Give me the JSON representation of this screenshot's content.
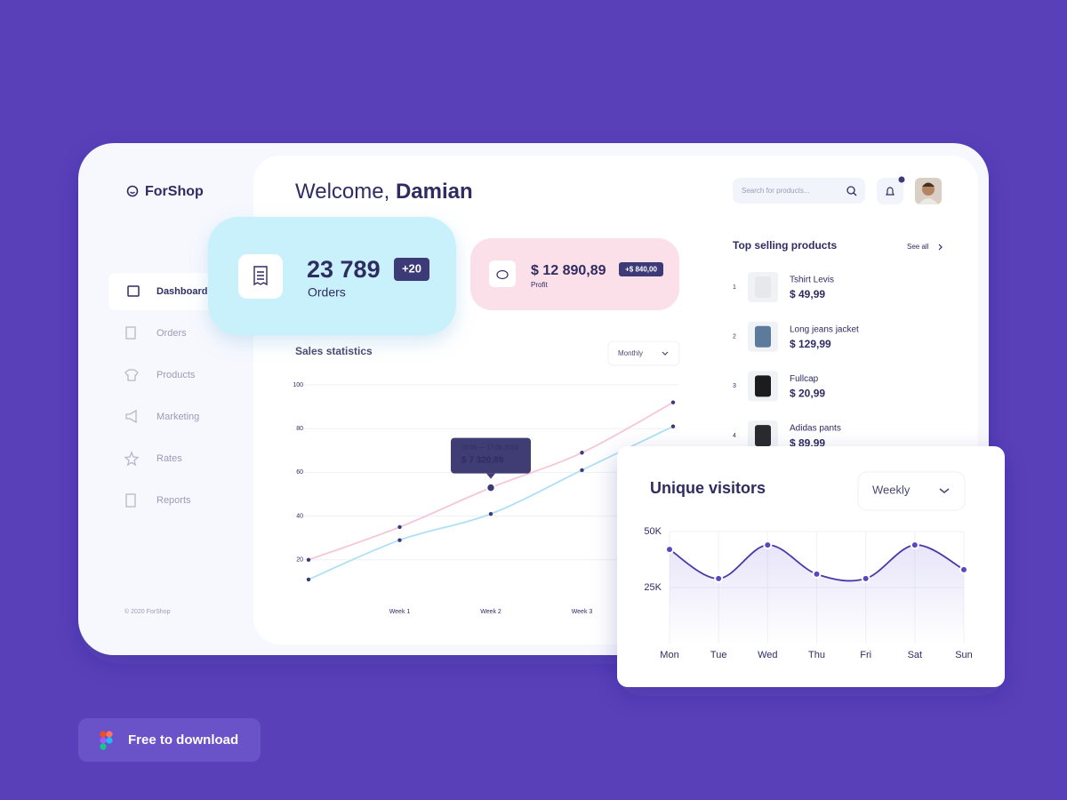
{
  "brand": "ForShop",
  "nav": [
    "Dashboard",
    "Orders",
    "Products",
    "Marketing",
    "Rates",
    "Reports"
  ],
  "copyright": "© 2020 ForShop",
  "header": {
    "greeting": "Welcome,",
    "name": "Damian",
    "search_placeholder": "Search for products..."
  },
  "orders_card": {
    "value": "23 789",
    "badge": "+20",
    "label": "Orders"
  },
  "profit_card": {
    "value": "$ 12 890,89",
    "badge": "+$ 840,00",
    "label": "Profit"
  },
  "top_products": {
    "title": "Top selling products",
    "link": "See all",
    "items": [
      {
        "rank": 1,
        "name": "Tshirt Levis",
        "price": "$ 49,99"
      },
      {
        "rank": 2,
        "name": "Long jeans jacket",
        "price": "$ 129,99"
      },
      {
        "rank": 3,
        "name": "Fullcap",
        "price": "$ 20,99"
      },
      {
        "rank": 4,
        "name": "Adidas pants",
        "price": "$ 89,99"
      }
    ]
  },
  "download_button": "Free to download",
  "chart_data": [
    {
      "type": "line",
      "title": "Sales statistics",
      "dropdown": "Monthly",
      "categories": [
        null,
        "Week 1",
        "Week 2",
        "Week 3",
        null
      ],
      "series": [
        {
          "color": "#f7c6d6",
          "values": [
            20,
            35,
            53,
            69,
            92
          ]
        },
        {
          "color": "#aee0f5",
          "values": [
            11,
            29,
            41,
            61,
            81
          ]
        }
      ],
      "ylim": [
        0,
        100
      ],
      "yticks": [
        20,
        40,
        60,
        80,
        100
      ],
      "grid": true,
      "annotation": {
        "date": "10.06 — 17.06.2020",
        "value": "$ 7 320,89"
      }
    },
    {
      "type": "line",
      "title": "Unique visitors",
      "dropdown": "Weekly",
      "categories": [
        "Mon",
        "Tue",
        "Wed",
        "Thu",
        "Fri",
        "Sat",
        "Sun"
      ],
      "series": [
        {
          "color": "#4b38a8",
          "values": [
            42000,
            29000,
            44000,
            31000,
            29000,
            44000,
            33000
          ]
        }
      ],
      "ylim": [
        0,
        50000
      ],
      "yticks": [
        {
          "value": 25000,
          "label": "25K"
        },
        {
          "value": 50000,
          "label": "50K"
        }
      ],
      "grid": true
    }
  ]
}
